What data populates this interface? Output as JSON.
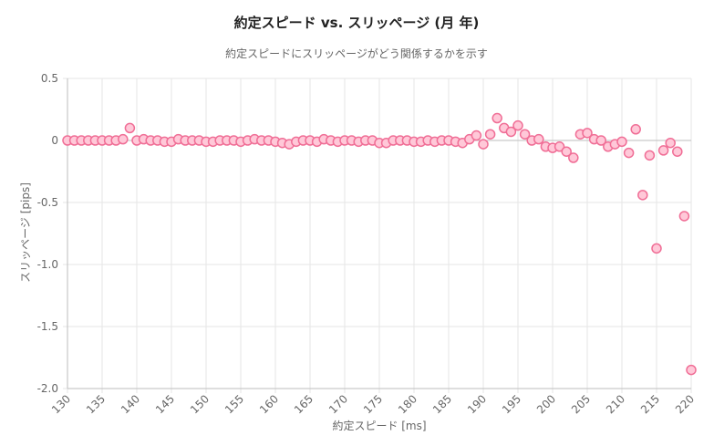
{
  "chart_data": {
    "type": "scatter",
    "title": "約定スピード vs. スリッページ (月 年)",
    "subtitle": "約定スピードにスリッページがどう関係するかを示す",
    "xlabel": "約定スピード [ms]",
    "ylabel": "スリッページ [pips]",
    "xlim": [
      130,
      220
    ],
    "ylim": [
      -2.0,
      0.5
    ],
    "x_ticks": [
      130,
      135,
      140,
      145,
      150,
      155,
      160,
      165,
      170,
      175,
      180,
      185,
      190,
      195,
      200,
      205,
      210,
      215,
      220
    ],
    "y_ticks": [
      0.5,
      0.0,
      -0.5,
      -1.0,
      -1.5,
      -2.0
    ],
    "x_tick_labels": [
      "130",
      "135",
      "140",
      "145",
      "150",
      "155",
      "160",
      "165",
      "170",
      "175",
      "180",
      "185",
      "190",
      "195",
      "200",
      "205",
      "210",
      "215",
      "220"
    ],
    "y_tick_labels": [
      "0.5",
      "0",
      "-0.5",
      "-1.0",
      "-1.5",
      "-2.0"
    ],
    "grid": true,
    "legend": "none",
    "colors": {
      "point_fill": "#ffc8d8",
      "point_stroke": "#f06e96",
      "grid": "#e6e6e6",
      "axis": "#bdbdbd",
      "text": "#666666",
      "title": "#222222"
    },
    "points": [
      {
        "x": 130,
        "y": 0.0
      },
      {
        "x": 131,
        "y": 0.0
      },
      {
        "x": 132,
        "y": 0.0
      },
      {
        "x": 133,
        "y": 0.0
      },
      {
        "x": 134,
        "y": 0.0
      },
      {
        "x": 135,
        "y": 0.0
      },
      {
        "x": 136,
        "y": 0.0
      },
      {
        "x": 137,
        "y": 0.0
      },
      {
        "x": 138,
        "y": 0.01
      },
      {
        "x": 139,
        "y": 0.1
      },
      {
        "x": 140,
        "y": 0.0
      },
      {
        "x": 141,
        "y": 0.01
      },
      {
        "x": 142,
        "y": 0.0
      },
      {
        "x": 143,
        "y": 0.0
      },
      {
        "x": 144,
        "y": -0.01
      },
      {
        "x": 145,
        "y": -0.01
      },
      {
        "x": 146,
        "y": 0.01
      },
      {
        "x": 147,
        "y": 0.0
      },
      {
        "x": 148,
        "y": 0.0
      },
      {
        "x": 149,
        "y": 0.0
      },
      {
        "x": 150,
        "y": -0.01
      },
      {
        "x": 151,
        "y": -0.01
      },
      {
        "x": 152,
        "y": 0.0
      },
      {
        "x": 153,
        "y": 0.0
      },
      {
        "x": 154,
        "y": 0.0
      },
      {
        "x": 155,
        "y": -0.01
      },
      {
        "x": 156,
        "y": 0.0
      },
      {
        "x": 157,
        "y": 0.01
      },
      {
        "x": 158,
        "y": 0.0
      },
      {
        "x": 159,
        "y": 0.0
      },
      {
        "x": 160,
        "y": -0.01
      },
      {
        "x": 161,
        "y": -0.02
      },
      {
        "x": 162,
        "y": -0.03
      },
      {
        "x": 163,
        "y": -0.01
      },
      {
        "x": 164,
        "y": 0.0
      },
      {
        "x": 165,
        "y": 0.0
      },
      {
        "x": 166,
        "y": -0.01
      },
      {
        "x": 167,
        "y": 0.01
      },
      {
        "x": 168,
        "y": 0.0
      },
      {
        "x": 169,
        "y": -0.01
      },
      {
        "x": 170,
        "y": 0.0
      },
      {
        "x": 171,
        "y": 0.0
      },
      {
        "x": 172,
        "y": -0.01
      },
      {
        "x": 173,
        "y": 0.0
      },
      {
        "x": 174,
        "y": 0.0
      },
      {
        "x": 175,
        "y": -0.02
      },
      {
        "x": 176,
        "y": -0.02
      },
      {
        "x": 177,
        "y": 0.0
      },
      {
        "x": 178,
        "y": 0.0
      },
      {
        "x": 179,
        "y": 0.0
      },
      {
        "x": 180,
        "y": -0.01
      },
      {
        "x": 181,
        "y": -0.01
      },
      {
        "x": 182,
        "y": 0.0
      },
      {
        "x": 183,
        "y": -0.01
      },
      {
        "x": 184,
        "y": 0.0
      },
      {
        "x": 185,
        "y": 0.0
      },
      {
        "x": 186,
        "y": -0.01
      },
      {
        "x": 187,
        "y": -0.02
      },
      {
        "x": 188,
        "y": 0.01
      },
      {
        "x": 189,
        "y": 0.04
      },
      {
        "x": 190,
        "y": -0.03
      },
      {
        "x": 191,
        "y": 0.05
      },
      {
        "x": 192,
        "y": 0.18
      },
      {
        "x": 193,
        "y": 0.1
      },
      {
        "x": 194,
        "y": 0.07
      },
      {
        "x": 195,
        "y": 0.12
      },
      {
        "x": 196,
        "y": 0.05
      },
      {
        "x": 197,
        "y": 0.0
      },
      {
        "x": 198,
        "y": 0.01
      },
      {
        "x": 199,
        "y": -0.05
      },
      {
        "x": 200,
        "y": -0.06
      },
      {
        "x": 201,
        "y": -0.05
      },
      {
        "x": 202,
        "y": -0.09
      },
      {
        "x": 203,
        "y": -0.14
      },
      {
        "x": 204,
        "y": 0.05
      },
      {
        "x": 205,
        "y": 0.06
      },
      {
        "x": 206,
        "y": 0.01
      },
      {
        "x": 207,
        "y": 0.0
      },
      {
        "x": 208,
        "y": -0.05
      },
      {
        "x": 209,
        "y": -0.03
      },
      {
        "x": 210,
        "y": -0.01
      },
      {
        "x": 211,
        "y": -0.1
      },
      {
        "x": 212,
        "y": 0.09
      },
      {
        "x": 213,
        "y": -0.44
      },
      {
        "x": 214,
        "y": -0.12
      },
      {
        "x": 215,
        "y": -0.87
      },
      {
        "x": 216,
        "y": -0.08
      },
      {
        "x": 217,
        "y": -0.02
      },
      {
        "x": 218,
        "y": -0.09
      },
      {
        "x": 219,
        "y": -0.61
      },
      {
        "x": 220,
        "y": -1.85
      }
    ]
  }
}
